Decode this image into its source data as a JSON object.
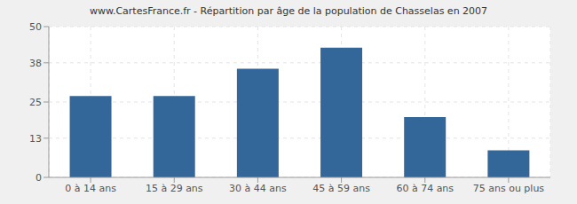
{
  "chart_data": {
    "type": "bar",
    "title": "www.CartesFrance.fr - Répartition par âge de la population de Chasselas en 2007",
    "categories": [
      "0 à 14 ans",
      "15 à 29 ans",
      "30 à 44 ans",
      "45 à 59 ans",
      "60 à 74 ans",
      "75 ans ou plus"
    ],
    "values": [
      27,
      27,
      36,
      43,
      20,
      9
    ],
    "color": "#336699",
    "ylim": [
      0,
      50
    ],
    "yticks": [
      0,
      13,
      25,
      38,
      50
    ],
    "grid": true
  }
}
